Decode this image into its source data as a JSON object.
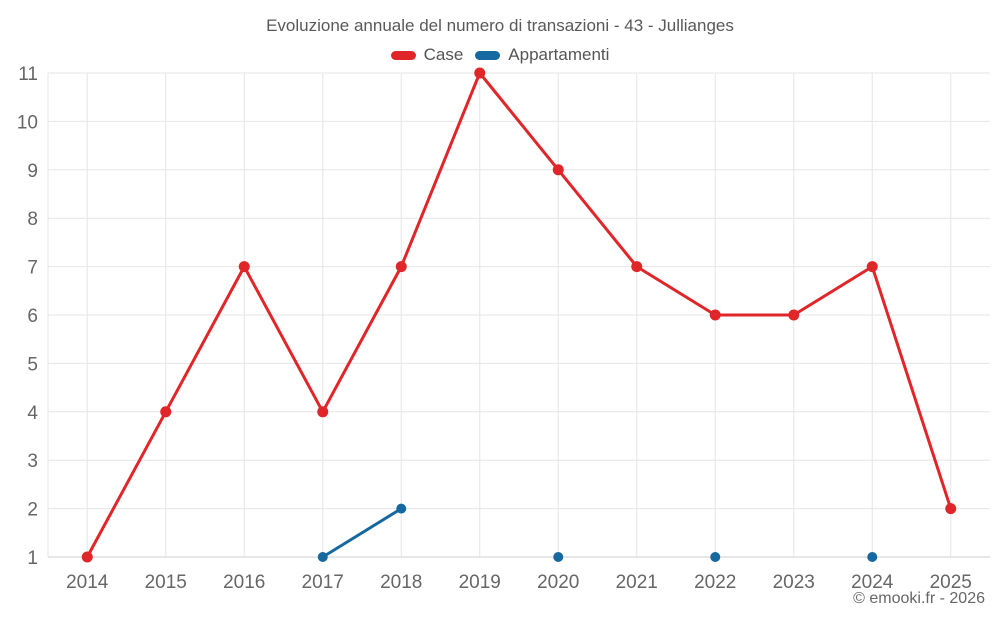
{
  "header": {
    "title": "Evoluzione annuale del numero di transazioni - 43 - Jullianges"
  },
  "footer": {
    "copyright": "© emooki.fr - 2026"
  },
  "colors": {
    "case_red": "#e02629",
    "appartamenti_blue": "#1668a1",
    "gridline": "#e6e6e6",
    "axis_line": "#cfcfcf",
    "tick_text": "#666666"
  },
  "chart_data": {
    "type": "line",
    "title": "Evoluzione annuale del numero di transazioni - 43 - Jullianges",
    "categories": [
      "2014",
      "2015",
      "2016",
      "2017",
      "2018",
      "2019",
      "2020",
      "2021",
      "2022",
      "2023",
      "2024",
      "2025"
    ],
    "series": [
      {
        "name": "Case",
        "color": "#e02629",
        "line_width": 3,
        "point_radius": 5.5,
        "values": [
          1,
          4,
          7,
          4,
          7,
          11,
          9,
          7,
          6,
          6,
          7,
          2
        ]
      },
      {
        "name": "Appartamenti",
        "color": "#1668a1",
        "line_width": 3,
        "point_radius": 5,
        "values": [
          null,
          null,
          null,
          1,
          2,
          null,
          1,
          null,
          1,
          null,
          1,
          null
        ]
      }
    ],
    "xlabel": "",
    "ylabel": "",
    "ylim": [
      1,
      11
    ],
    "yticks": [
      1,
      2,
      3,
      4,
      5,
      6,
      7,
      8,
      9,
      10,
      11
    ],
    "grid": true,
    "legend_position": "top"
  }
}
